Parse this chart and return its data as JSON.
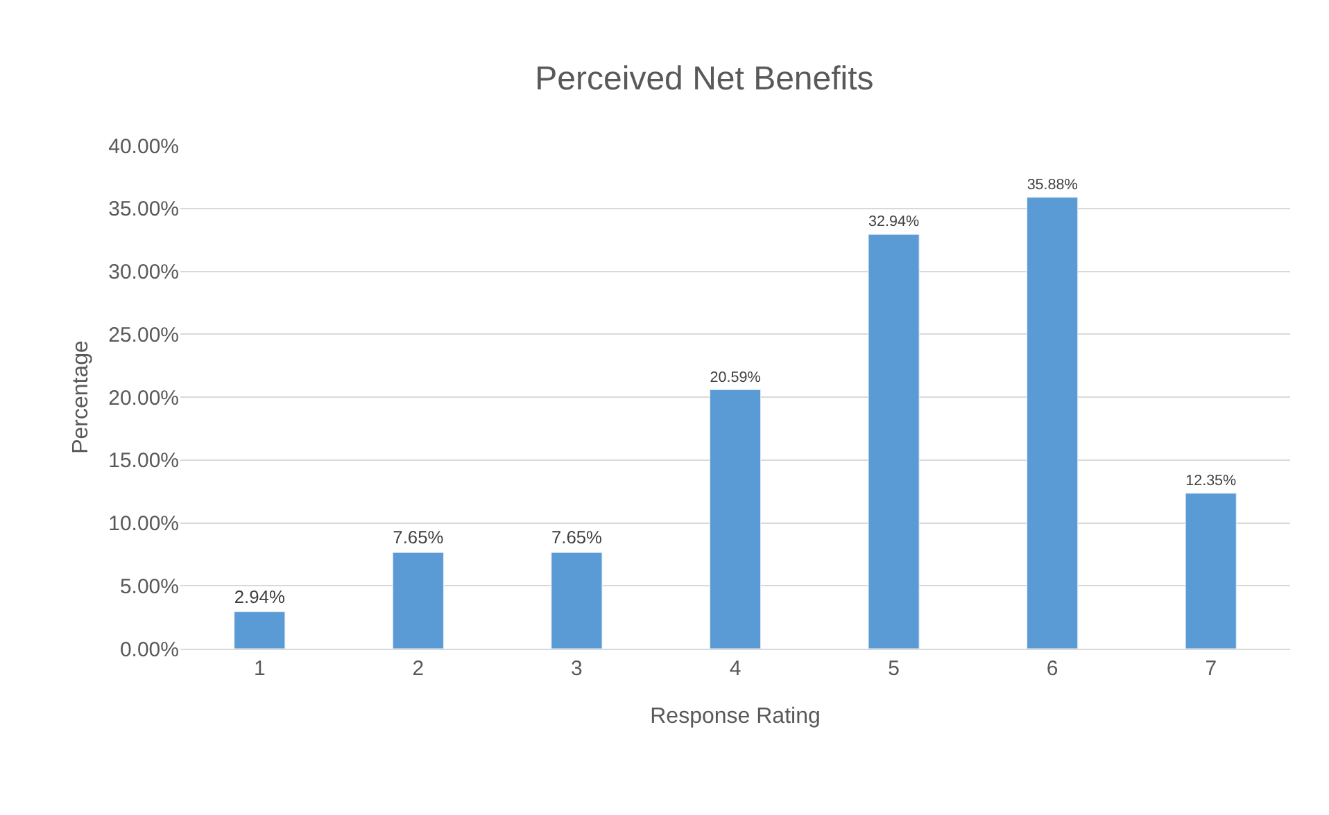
{
  "chart_data": {
    "type": "bar",
    "title": "Perceived Net Benefits",
    "xlabel": "Response Rating",
    "ylabel": "Percentage",
    "categories": [
      "1",
      "2",
      "3",
      "4",
      "5",
      "6",
      "7"
    ],
    "values": [
      2.94,
      7.65,
      7.65,
      20.59,
      32.94,
      35.88,
      12.35
    ],
    "value_labels": [
      "2.94%",
      "7.65%",
      "7.65%",
      "20.59%",
      "32.94%",
      "35.88%",
      "12.35%"
    ],
    "color": "#5b9bd5",
    "ylim": [
      0,
      40
    ],
    "yticks": [
      {
        "value": 0,
        "label": "0.00%"
      },
      {
        "value": 5,
        "label": "5.00%"
      },
      {
        "value": 10,
        "label": "10.00%"
      },
      {
        "value": 15,
        "label": "15.00%"
      },
      {
        "value": 20,
        "label": "20.00%"
      },
      {
        "value": 25,
        "label": "25.00%"
      },
      {
        "value": 30,
        "label": "30.00%"
      },
      {
        "value": 35,
        "label": "35.00%"
      },
      {
        "value": 40,
        "label": "40.00%"
      }
    ],
    "grid": "y",
    "legend": false
  }
}
